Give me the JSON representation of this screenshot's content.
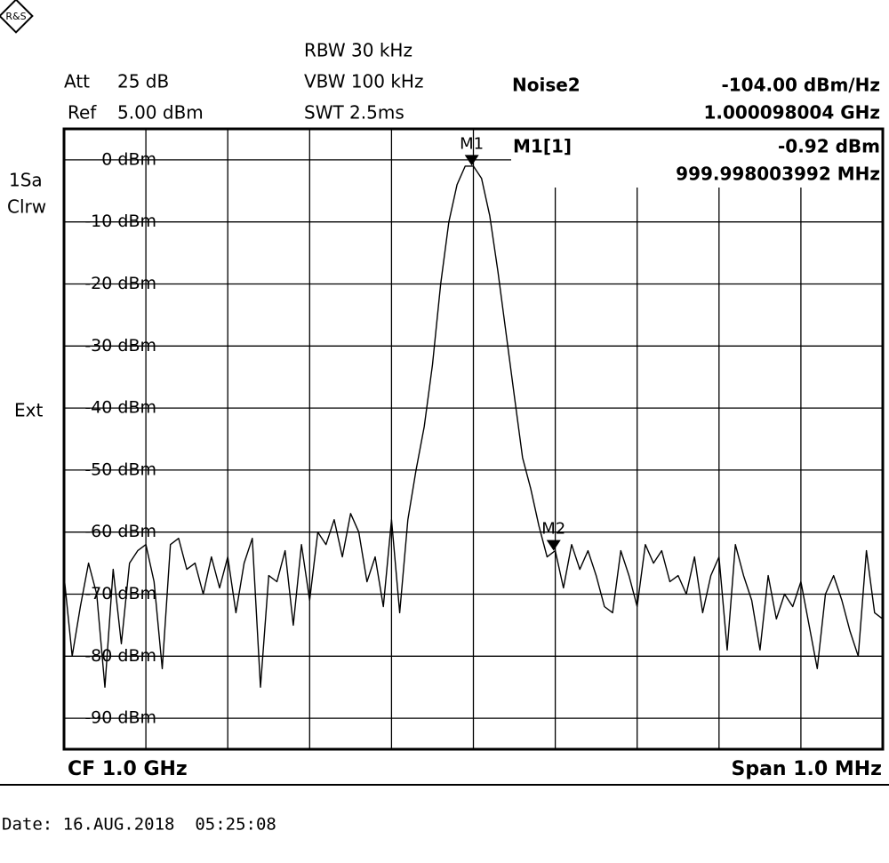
{
  "chart_data": {
    "type": "line",
    "settings": {
      "att_label": "Att",
      "att": "25 dB",
      "ref_label": "Ref",
      "ref": "5.00 dBm",
      "rbw": "RBW 30 kHz",
      "vbw": "VBW 100 kHz",
      "swt": "SWT 2.5ms"
    },
    "marker_info": {
      "name": "Noise2",
      "value": "-104.00 dBm/Hz",
      "freq": "1.000098004 GHz",
      "m1": "M1[1]",
      "m1_value": "-0.92 dBm",
      "m1_freq": "999.998003992 MHz"
    },
    "side": [
      "1Sa",
      "Clrw",
      "Ext"
    ],
    "footer_left": "CF 1.0 GHz",
    "footer_right": "Span 1.0 MHz",
    "date": "Date: 16.AUG.2018  05:25:08",
    "xlim": [
      999.5,
      1000.5
    ],
    "ylim": [
      -95,
      5
    ],
    "yticks": [
      {
        "value": 0,
        "label": "0 dBm"
      },
      {
        "value": -10,
        "label": "-10 dBm"
      },
      {
        "value": -20,
        "label": "-20 dBm"
      },
      {
        "value": -30,
        "label": "-30 dBm"
      },
      {
        "value": -40,
        "label": "-40 dBm"
      },
      {
        "value": -50,
        "label": "-50 dBm"
      },
      {
        "value": -60,
        "label": "-60 dBm"
      },
      {
        "value": -70,
        "label": "-70 dBm"
      },
      {
        "value": -80,
        "label": "-80 dBm"
      },
      {
        "value": -90,
        "label": "-90 dBm"
      }
    ],
    "grid": true,
    "markers": [
      {
        "name": "M1",
        "x": 999.998003992,
        "y": -0.92
      },
      {
        "name": "M2",
        "x": 1000.098004,
        "y": -63
      }
    ],
    "x": [
      999.5,
      999.51,
      999.52,
      999.53,
      999.54,
      999.55,
      999.56,
      999.57,
      999.58,
      999.59,
      999.6,
      999.61,
      999.62,
      999.63,
      999.64,
      999.65,
      999.66,
      999.67,
      999.68,
      999.69,
      999.7,
      999.71,
      999.72,
      999.73,
      999.74,
      999.75,
      999.76,
      999.77,
      999.78,
      999.79,
      999.8,
      999.81,
      999.82,
      999.83,
      999.84,
      999.85,
      999.86,
      999.87,
      999.88,
      999.89,
      999.9,
      999.91,
      999.92,
      999.93,
      999.94,
      999.95,
      999.96,
      999.97,
      999.98,
      999.99,
      1000,
      1000.01,
      1000.02,
      1000.03,
      1000.04,
      1000.05,
      1000.06,
      1000.07,
      1000.08,
      1000.09,
      1000.1,
      1000.11,
      1000.12,
      1000.13,
      1000.14,
      1000.15,
      1000.16,
      1000.17,
      1000.18,
      1000.19,
      1000.2,
      1000.21,
      1000.22,
      1000.23,
      1000.24,
      1000.25,
      1000.26,
      1000.27,
      1000.28,
      1000.29,
      1000.3,
      1000.31,
      1000.32,
      1000.33,
      1000.34,
      1000.35,
      1000.36,
      1000.37,
      1000.38,
      1000.39,
      1000.4,
      1000.41,
      1000.42,
      1000.43,
      1000.44,
      1000.45,
      1000.46,
      1000.47,
      1000.48,
      1000.49,
      1000.5
    ],
    "series": [
      {
        "color": "#000000",
        "values": [
          -67,
          -80,
          -72,
          -65,
          -70,
          -85,
          -66,
          -78,
          -65,
          -63,
          -62,
          -68,
          -82,
          -62,
          -61,
          -66,
          -65,
          -70,
          -64,
          -69,
          -64,
          -73,
          -65,
          -61,
          -85,
          -67,
          -68,
          -63,
          -75,
          -62,
          -71,
          -60,
          -62,
          -58,
          -64,
          -57,
          -60,
          -68,
          -64,
          -72,
          -58,
          -73,
          -58,
          -50,
          -43,
          -33,
          -20,
          -10,
          -4,
          -1,
          -1,
          -3,
          -9,
          -18,
          -28,
          -38,
          -48,
          -53,
          -59,
          -64,
          -63,
          -69,
          -62,
          -66,
          -63,
          -67,
          -72,
          -73,
          -63,
          -67,
          -72,
          -62,
          -65,
          -63,
          -68,
          -67,
          -70,
          -64,
          -73,
          -67,
          -64,
          -79,
          -62,
          -67,
          -71,
          -79,
          -67,
          -74,
          -70,
          -72,
          -68,
          -75,
          -82,
          -70,
          -67,
          -71,
          -76,
          -80,
          -63,
          -73,
          -74
        ]
      }
    ]
  }
}
